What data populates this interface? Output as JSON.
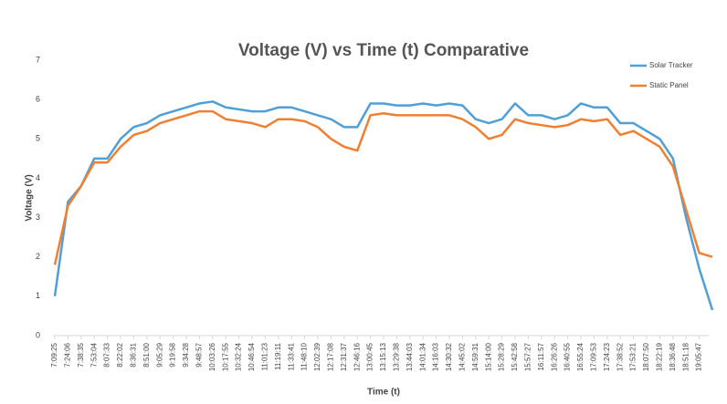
{
  "chart_data": {
    "type": "line",
    "title": "Voltage (V) vs Time (t) Comparative",
    "x_label": "Time (t)",
    "y_label": "Voltage (V)",
    "categories": [
      "7:09:25",
      "7:24:06",
      "7:38:35",
      "7:53:04",
      "8:07:33",
      "8:22:02",
      "8:36:31",
      "8:51:00",
      "9:05:29",
      "9:19:58",
      "9:34:28",
      "9:48:57",
      "10:03:26",
      "10:17:55",
      "10:32:24",
      "10:46:54",
      "11:01:23",
      "11:19:11",
      "11:33:41",
      "11:48:10",
      "12:02:39",
      "12:17:08",
      "12:31:37",
      "12:46:16",
      "13:00:45",
      "13:15:13",
      "13:29:38",
      "13:44:03",
      "14:01:34",
      "14:16:03",
      "14:30:32",
      "14:45:02",
      "14:59:31",
      "15:14:00",
      "15:28:29",
      "15:42:58",
      "15:57:27",
      "16:11:57",
      "16:26:26",
      "16:40:55",
      "16:55:24",
      "17:09:53",
      "17:24:23",
      "17:38:52",
      "17:53:21",
      "18:07:50",
      "18:22:19",
      "18:36:48",
      "18:51:18",
      "19:05:47",
      null
    ],
    "series": [
      {
        "name": "Solar Tracker",
        "color": "#4f9fd8",
        "values": [
          1.0,
          3.4,
          3.8,
          4.5,
          4.5,
          5.0,
          5.3,
          5.4,
          5.6,
          5.7,
          5.8,
          5.9,
          5.95,
          5.8,
          5.75,
          5.7,
          5.7,
          5.8,
          5.8,
          5.7,
          5.6,
          5.5,
          5.3,
          5.3,
          5.9,
          5.9,
          5.85,
          5.85,
          5.9,
          5.85,
          5.9,
          5.85,
          5.5,
          5.4,
          5.5,
          5.9,
          5.6,
          5.6,
          5.5,
          5.6,
          5.9,
          5.8,
          5.8,
          5.4,
          5.4,
          5.2,
          5.0,
          4.5,
          3.0,
          1.7,
          0.65
        ]
      },
      {
        "name": "Static Panel",
        "color": "#f07f32",
        "values": [
          1.8,
          3.3,
          3.8,
          4.4,
          4.4,
          4.8,
          5.1,
          5.2,
          5.4,
          5.5,
          5.6,
          5.7,
          5.7,
          5.5,
          5.45,
          5.4,
          5.3,
          5.5,
          5.5,
          5.45,
          5.3,
          5.0,
          4.8,
          4.7,
          5.6,
          5.65,
          5.6,
          5.6,
          5.6,
          5.6,
          5.6,
          5.5,
          5.3,
          5.0,
          5.1,
          5.5,
          5.4,
          5.35,
          5.3,
          5.35,
          5.5,
          5.45,
          5.5,
          5.1,
          5.2,
          5.0,
          4.8,
          4.3,
          3.2,
          2.1,
          2.0
        ]
      }
    ],
    "ylim": [
      0,
      7
    ],
    "yticks": [
      0,
      1,
      2,
      3,
      4,
      5,
      6,
      7
    ],
    "legend": "top-right"
  }
}
